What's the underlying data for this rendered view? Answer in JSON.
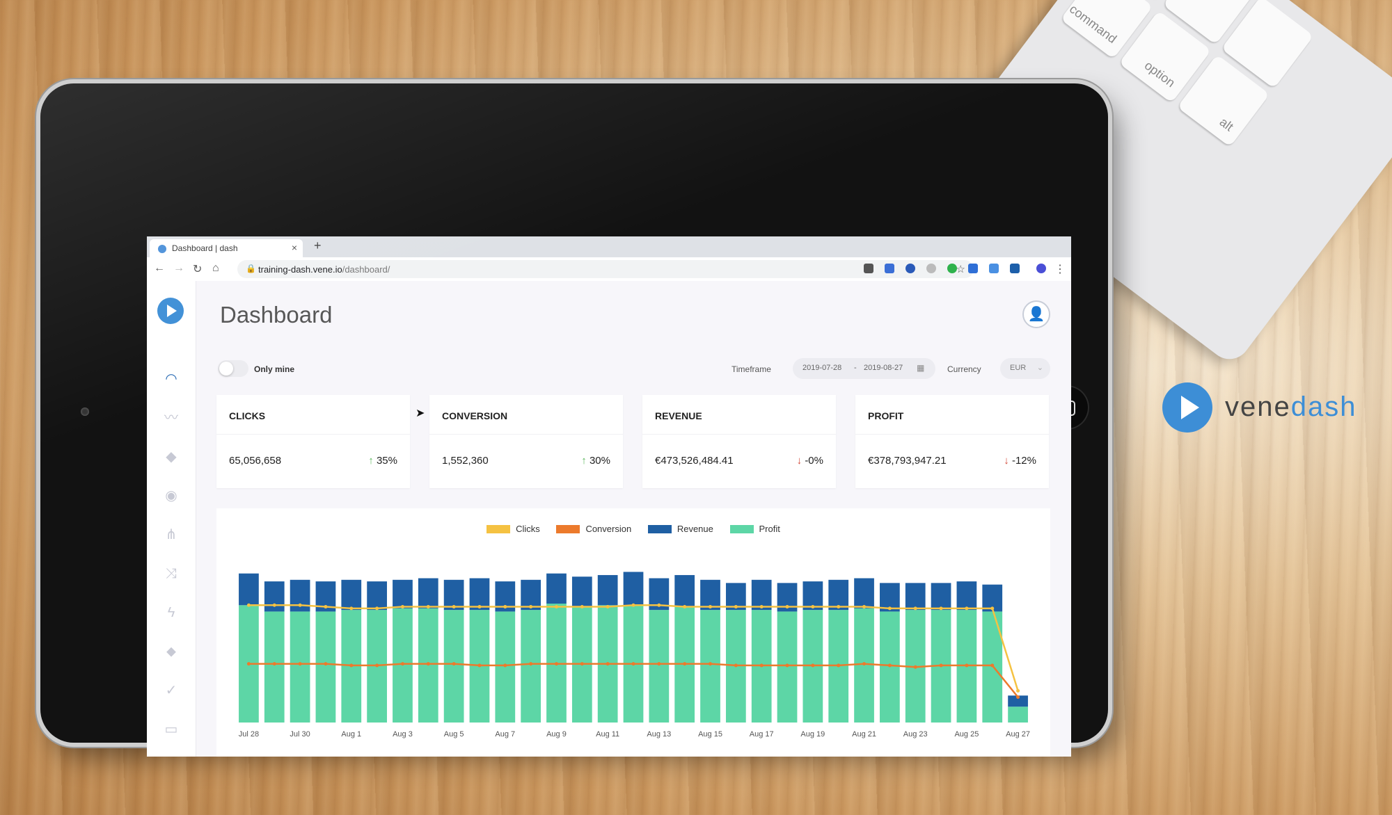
{
  "browser": {
    "tab_title": "Dashboard | dash",
    "tab_close": "×",
    "new_tab": "+",
    "url_host": "training-dash.vene.io",
    "url_path": "/dashboard/",
    "back": "←",
    "forward": "→",
    "reload": "↻",
    "home": "⌂",
    "star": "☆",
    "menu": "⋮"
  },
  "dashboard": {
    "title": "Dashboard",
    "only_mine_label": "Only mine",
    "timeframe_label": "Timeframe",
    "timeframe_start": "2019-07-28",
    "timeframe_separator": "-",
    "timeframe_end": "2019-08-27",
    "currency_label": "Currency",
    "currency_value": "EUR",
    "cards": [
      {
        "title": "CLICKS",
        "value": "65,056,658",
        "arrow": "↑",
        "change": "35%",
        "direction": "up"
      },
      {
        "title": "CONVERSION",
        "value": "1,552,360",
        "arrow": "↑",
        "change": "30%",
        "direction": "up"
      },
      {
        "title": "REVENUE",
        "value": "€473,526,484.41",
        "arrow": "↓",
        "change": "-0%",
        "direction": "down"
      },
      {
        "title": "PROFIT",
        "value": "€378,793,947.21",
        "arrow": "↓",
        "change": "-12%",
        "direction": "down"
      }
    ]
  },
  "keyboard": {
    "command": "command",
    "option": "option",
    "alt": "alt"
  },
  "brand": {
    "part1": "vene",
    "part2": "dash"
  },
  "colors": {
    "clicks": "#f5c242",
    "conversion": "#ec7a2c",
    "revenue": "#1f5fa3",
    "profit": "#5dd6a6",
    "accent": "#3d8ed6"
  },
  "chart_data": {
    "type": "bar",
    "categories": [
      "Jul 28",
      "Jul 29",
      "Jul 30",
      "Jul 31",
      "Aug 1",
      "Aug 2",
      "Aug 3",
      "Aug 4",
      "Aug 5",
      "Aug 6",
      "Aug 7",
      "Aug 8",
      "Aug 9",
      "Aug 10",
      "Aug 11",
      "Aug 12",
      "Aug 13",
      "Aug 14",
      "Aug 15",
      "Aug 16",
      "Aug 17",
      "Aug 18",
      "Aug 19",
      "Aug 20",
      "Aug 21",
      "Aug 22",
      "Aug 23",
      "Aug 24",
      "Aug 25",
      "Aug 26",
      "Aug 27"
    ],
    "tick_labels": [
      "Jul 28",
      "Jul 30",
      "Aug 1",
      "Aug 3",
      "Aug 5",
      "Aug 7",
      "Aug 9",
      "Aug 11",
      "Aug 13",
      "Aug 15",
      "Aug 17",
      "Aug 19",
      "Aug 21",
      "Aug 23",
      "Aug 25",
      "Aug 27"
    ],
    "series": [
      {
        "name": "Profit",
        "kind": "bar",
        "values": [
          0.74,
          0.7,
          0.7,
          0.7,
          0.71,
          0.71,
          0.72,
          0.72,
          0.71,
          0.71,
          0.7,
          0.71,
          0.75,
          0.73,
          0.74,
          0.74,
          0.71,
          0.73,
          0.71,
          0.71,
          0.71,
          0.7,
          0.71,
          0.71,
          0.72,
          0.7,
          0.71,
          0.71,
          0.71,
          0.7,
          0.1
        ]
      },
      {
        "name": "Revenue",
        "kind": "bar",
        "values": [
          0.2,
          0.19,
          0.2,
          0.19,
          0.19,
          0.18,
          0.18,
          0.19,
          0.19,
          0.2,
          0.19,
          0.19,
          0.19,
          0.19,
          0.19,
          0.21,
          0.2,
          0.2,
          0.19,
          0.17,
          0.19,
          0.18,
          0.18,
          0.19,
          0.19,
          0.18,
          0.17,
          0.17,
          0.18,
          0.17,
          0.07
        ]
      },
      {
        "name": "Clicks",
        "kind": "line",
        "values": [
          0.74,
          0.74,
          0.74,
          0.73,
          0.72,
          0.72,
          0.73,
          0.73,
          0.73,
          0.73,
          0.73,
          0.73,
          0.73,
          0.73,
          0.73,
          0.74,
          0.74,
          0.73,
          0.73,
          0.73,
          0.73,
          0.73,
          0.73,
          0.73,
          0.73,
          0.72,
          0.72,
          0.72,
          0.72,
          0.72,
          0.2
        ]
      },
      {
        "name": "Conversion",
        "kind": "line",
        "values": [
          0.37,
          0.37,
          0.37,
          0.37,
          0.36,
          0.36,
          0.37,
          0.37,
          0.37,
          0.36,
          0.36,
          0.37,
          0.37,
          0.37,
          0.37,
          0.37,
          0.37,
          0.37,
          0.37,
          0.36,
          0.36,
          0.36,
          0.36,
          0.36,
          0.37,
          0.36,
          0.35,
          0.36,
          0.36,
          0.36,
          0.16
        ]
      }
    ],
    "legend_position": "top-center",
    "grid": false
  }
}
